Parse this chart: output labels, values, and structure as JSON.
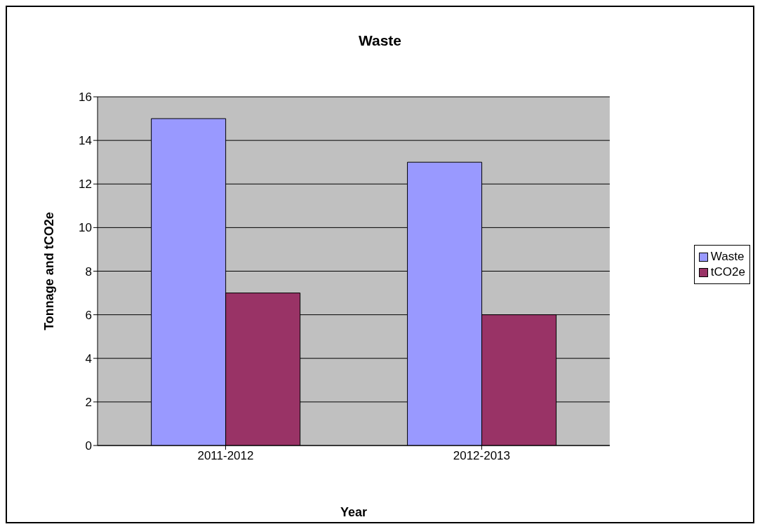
{
  "chart_data": {
    "type": "bar",
    "title": "Waste",
    "xlabel": "Year",
    "ylabel": "Tonnage and tCO2e",
    "categories": [
      "2011-2012",
      "2012-2013"
    ],
    "series": [
      {
        "name": "Waste",
        "color": "#9999ff",
        "values": [
          15,
          13
        ]
      },
      {
        "name": "tCO2e",
        "color": "#993366",
        "values": [
          7,
          6
        ]
      }
    ],
    "ylim": [
      0,
      16
    ],
    "yticks": [
      0,
      2,
      4,
      6,
      8,
      10,
      12,
      14,
      16
    ],
    "grid": "y",
    "legend": "right"
  }
}
